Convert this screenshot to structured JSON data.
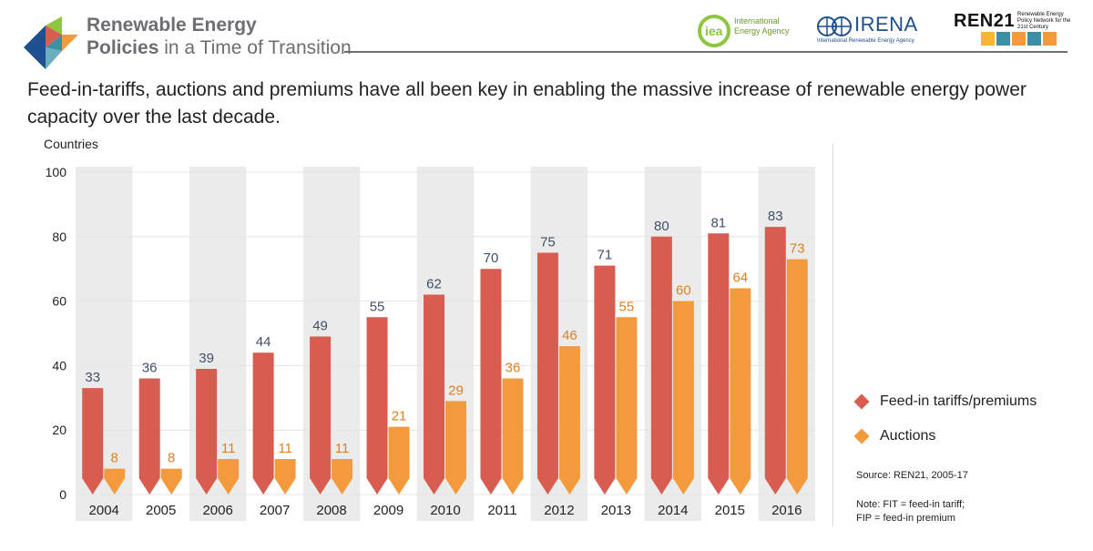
{
  "header": {
    "brand_line1": "Renewable Energy",
    "brand_line2_bold": "Policies",
    "brand_line2_rest": " in a Time of Transition",
    "partners": {
      "iea_mark": "iea",
      "iea_name": "International Energy Agency",
      "irena_name": "IRENA",
      "irena_sub": "International Renewable Energy Agency",
      "ren21_name": "REN21",
      "ren21_sub": "Renewable Energy Policy Network for the 21st Century"
    }
  },
  "subtitle": "Feed-in-tariffs, auctions and premiums have all been key in enabling the massive increase of renewable energy power capacity over the last decade.",
  "legend": {
    "fit_label": "Feed-in tariffs/premiums",
    "auction_label": "Auctions"
  },
  "source": "Source: REN21, 2005-17",
  "note_line1": "Note: FIT = feed-in tariff;",
  "note_line2": "FIP = feed-in premium",
  "colors": {
    "fit": "#d95c50",
    "auctions": "#f39a3d",
    "band": "#ebebeb",
    "value_fit": "#3f5068",
    "value_auction": "#e07f1e",
    "logo": [
      "#8dc63f",
      "#f39a3d",
      "#d95c50",
      "#3d8fa5",
      "#1e4f8f"
    ]
  },
  "chart_data": {
    "type": "bar",
    "ylabel": "Countries",
    "ylim": [
      0,
      100
    ],
    "yticks": [
      0,
      20,
      40,
      60,
      80,
      100
    ],
    "categories": [
      "2004",
      "2005",
      "2006",
      "2007",
      "2008",
      "2009",
      "2010",
      "2011",
      "2012",
      "2013",
      "2014",
      "2015",
      "2016"
    ],
    "series": [
      {
        "name": "Feed-in tariffs/premiums",
        "values": [
          33,
          36,
          39,
          44,
          49,
          55,
          62,
          70,
          75,
          71,
          80,
          81,
          83
        ]
      },
      {
        "name": "Auctions",
        "values": [
          8,
          8,
          11,
          11,
          11,
          21,
          29,
          36,
          46,
          55,
          60,
          64,
          73
        ]
      }
    ]
  }
}
